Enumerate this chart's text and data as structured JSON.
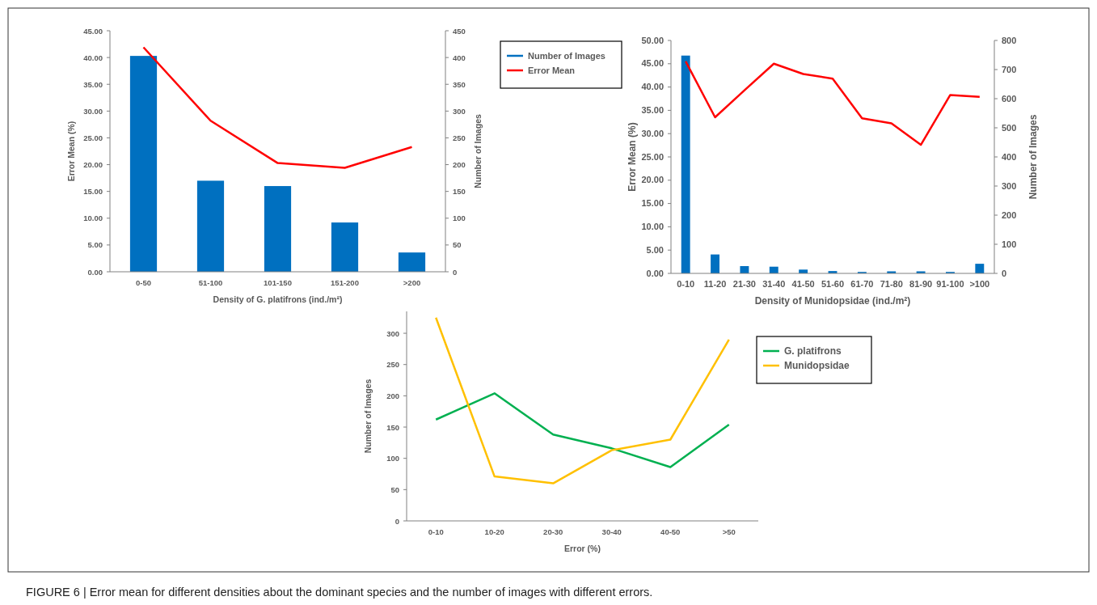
{
  "chart_data": [
    {
      "type": "bar",
      "xlabel": "Density of G. platifrons (ind./m²)",
      "ylabel": "Error Mean (%)",
      "y2label": "Number of Images",
      "categories": [
        "0-50",
        "51-100",
        "101-150",
        "151-200",
        ">200"
      ],
      "series": [
        {
          "name": "Number of Images",
          "axis": "y2",
          "color": "#0070c0",
          "values": [
            403,
            170,
            160,
            92,
            36
          ]
        },
        {
          "name": "Error Mean",
          "type": "line",
          "axis": "y",
          "color": "#ff0000",
          "values": [
            41.9,
            28.2,
            20.3,
            19.4,
            23.3
          ]
        }
      ],
      "ylim": [
        0,
        45
      ],
      "yticks": [
        {
          "value": 0,
          "label": "0.00"
        },
        {
          "value": 5,
          "label": "5.00"
        },
        {
          "value": 10,
          "label": "10.00"
        },
        {
          "value": 15,
          "label": "15.00"
        },
        {
          "value": 20,
          "label": "20.00"
        },
        {
          "value": 25,
          "label": "25.00"
        },
        {
          "value": 30,
          "label": "30.00"
        },
        {
          "value": 35,
          "label": "35.00"
        },
        {
          "value": 40,
          "label": "40.00"
        },
        {
          "value": 45,
          "label": "45.00"
        }
      ],
      "y2lim": [
        0,
        450
      ],
      "y2ticks": [
        0,
        50,
        100,
        150,
        200,
        250,
        300,
        350,
        400,
        450
      ],
      "legend": "top right",
      "grid": false
    },
    {
      "type": "bar",
      "xlabel": "Density of Munidopsidae (ind./m²)",
      "ylabel": "Error Mean (%)",
      "y2label": "Number of Images",
      "categories": [
        "0-10",
        "11-20",
        "21-30",
        "31-40",
        "41-50",
        "51-60",
        "61-70",
        "71-80",
        "81-90",
        "91-100",
        ">100"
      ],
      "series": [
        {
          "axis": "y2",
          "color": "#0070c0",
          "values": [
            748,
            65,
            25,
            23,
            13,
            8,
            5,
            7,
            7,
            5,
            33
          ]
        },
        {
          "type": "line",
          "axis": "y",
          "color": "#ff0000",
          "values": [
            45.5,
            33.5,
            39.3,
            45.0,
            42.8,
            41.8,
            33.3,
            32.2,
            27.6,
            38.3,
            37.9
          ]
        }
      ],
      "ylim": [
        0,
        50
      ],
      "yticks": [
        {
          "value": 0,
          "label": "0.00"
        },
        {
          "value": 5,
          "label": "5.00"
        },
        {
          "value": 10,
          "label": "10.00"
        },
        {
          "value": 15,
          "label": "15.00"
        },
        {
          "value": 20,
          "label": "20.00"
        },
        {
          "value": 25,
          "label": "25.00"
        },
        {
          "value": 30,
          "label": "30.00"
        },
        {
          "value": 35,
          "label": "35.00"
        },
        {
          "value": 40,
          "label": "40.00"
        },
        {
          "value": 45,
          "label": "45.00"
        },
        {
          "value": 50,
          "label": "50.00"
        }
      ],
      "y2lim": [
        0,
        800
      ],
      "y2ticks": [
        0,
        100,
        200,
        300,
        400,
        500,
        600,
        700,
        800
      ],
      "legend": false,
      "grid": false
    },
    {
      "type": "line",
      "xlabel": "Error (%)",
      "ylabel": "Number of Images",
      "categories": [
        "0-10",
        "10-20",
        "20-30",
        "30-40",
        "40-50",
        ">50"
      ],
      "series": [
        {
          "name": "G. platifrons",
          "color": "#00b050",
          "values": [
            162,
            204,
            138,
            116,
            86,
            154
          ]
        },
        {
          "name": "Munidopsidae",
          "color": "#ffc000",
          "values": [
            325,
            71,
            60,
            113,
            130,
            290
          ]
        }
      ],
      "ylim": [
        0,
        335
      ],
      "yticks": [
        0,
        50,
        100,
        150,
        200,
        250,
        300
      ],
      "legend": "top right",
      "grid": false,
      "annotations": [
        "FIGURE 6 | Error mean for different densities about the dominant species and the number of images with different errors."
      ]
    }
  ]
}
